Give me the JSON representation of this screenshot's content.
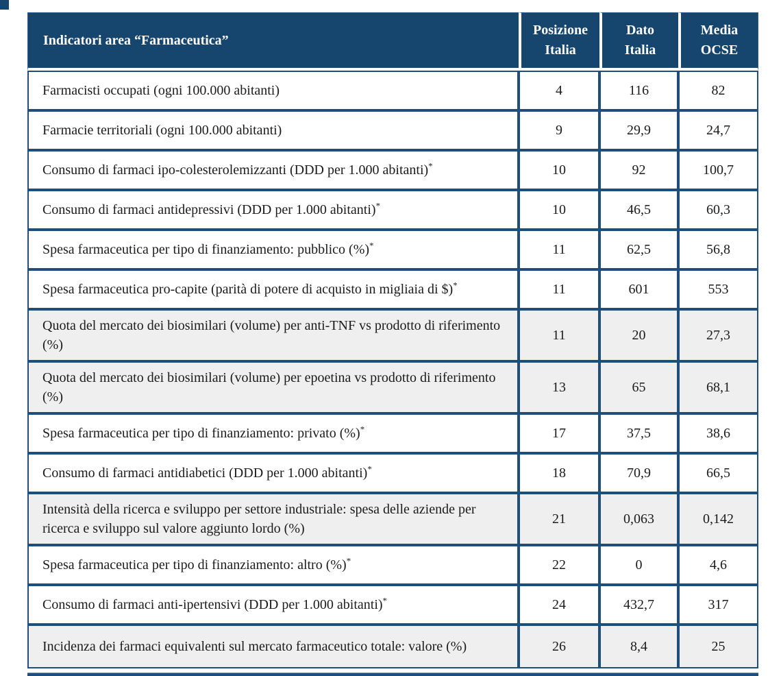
{
  "page": {
    "accent_navy": "#16466e",
    "border_blue": "#1f4e7c",
    "shaded_row_bg": "#efefef",
    "header_text_color": "#ffffff"
  },
  "table": {
    "columns": [
      {
        "label": "Indicatori area “Farmaceutica”"
      },
      {
        "line1": "Posizione",
        "line2": "Italia"
      },
      {
        "line1": "Dato",
        "line2": "Italia"
      },
      {
        "line1": "Media",
        "line2": "OCSE"
      }
    ],
    "rows": [
      {
        "label": "Farmacisti occupati (ogni 100.000 abitanti)",
        "posizione": "4",
        "dato": "116",
        "media": "82",
        "shaded": false
      },
      {
        "label": "Farmacie territoriali (ogni 100.000 abitanti)",
        "posizione": "9",
        "dato": "29,9",
        "media": "24,7",
        "shaded": false
      },
      {
        "label": "Consumo di farmaci ipo-colesterolemizzanti (DDD per 1.000 abitanti)",
        "sup": "*",
        "posizione": "10",
        "dato": "92",
        "media": "100,7",
        "shaded": false
      },
      {
        "label": "Consumo di farmaci antidepressivi (DDD per 1.000 abitanti)",
        "sup": "*",
        "posizione": "10",
        "dato": "46,5",
        "media": "60,3",
        "shaded": false
      },
      {
        "label": "Spesa farmaceutica per tipo di finanziamento: pubblico (%)",
        "sup": "*",
        "posizione": "11",
        "dato": "62,5",
        "media": "56,8",
        "shaded": false
      },
      {
        "label": "Spesa farmaceutica pro-capite (parità di potere di acquisto in migliaia di $)",
        "sup": "*",
        "posizione": "11",
        "dato": "601",
        "media": "553",
        "shaded": false
      },
      {
        "label": "Quota del mercato dei biosimilari (volume) per anti-TNF vs prodotto di riferimento (%)",
        "posizione": "11",
        "dato": "20",
        "media": "27,3",
        "shaded": true
      },
      {
        "label": "Quota del mercato dei biosimilari (volume) per epoetina vs prodotto di riferimento (%)",
        "posizione": "13",
        "dato": "65",
        "media": "68,1",
        "shaded": true
      },
      {
        "label": "Spesa farmaceutica per tipo di finanziamento: privato (%)",
        "sup": "*",
        "posizione": "17",
        "dato": "37,5",
        "media": "38,6",
        "shaded": false
      },
      {
        "label": "Consumo di farmaci antidiabetici (DDD per 1.000 abitanti)",
        "sup": "*",
        "posizione": "18",
        "dato": "70,9",
        "media": "66,5",
        "shaded": false
      },
      {
        "label": "Intensità della ricerca e sviluppo per settore industriale: spesa delle aziende per ricerca e sviluppo sul valore aggiunto lordo (%)",
        "posizione": "21",
        "dato": "0,063",
        "media": "0,142",
        "shaded": true
      },
      {
        "label": "Spesa farmaceutica per tipo di finanziamento: altro (%)",
        "sup": "*",
        "posizione": "22",
        "dato": "0",
        "media": "4,6",
        "shaded": false
      },
      {
        "label": "Consumo di farmaci anti-ipertensivi (DDD per 1.000 abitanti)",
        "sup": "*",
        "posizione": "24",
        "dato": "432,7",
        "media": "317",
        "shaded": false
      },
      {
        "label": "Incidenza dei farmaci equivalenti sul mercato farmaceutico totale: valore (%)",
        "posizione": "26",
        "dato": "8,4",
        "media": "25",
        "shaded": true
      }
    ]
  }
}
